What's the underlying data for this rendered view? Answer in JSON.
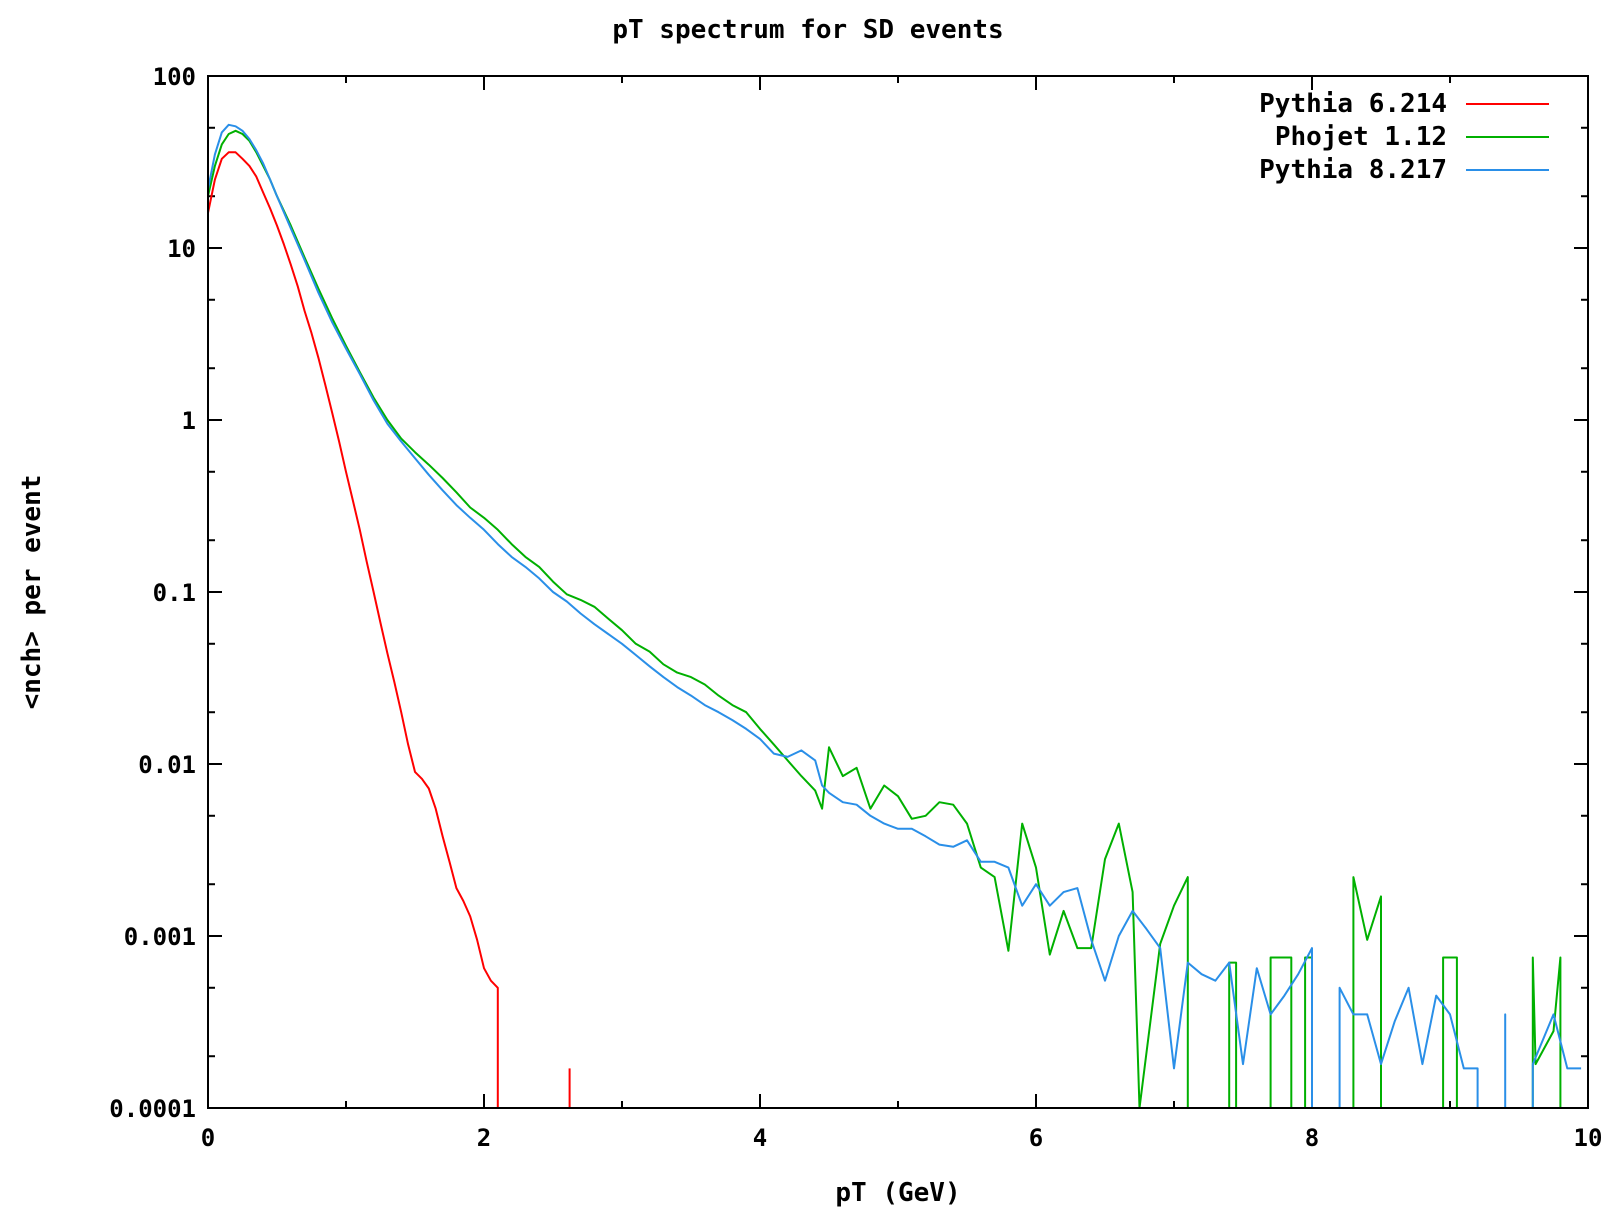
{
  "chart_data": {
    "type": "line",
    "title": "pT spectrum for SD events",
    "xlabel": "pT (GeV)",
    "ylabel": "<nch> per event",
    "xlim": [
      0,
      10
    ],
    "ylim": [
      0.0001,
      100
    ],
    "yscale": "log",
    "x_ticks": [
      "0",
      "2",
      "4",
      "6",
      "8",
      "10"
    ],
    "y_ticks": [
      "100",
      "10",
      "1",
      "0.1",
      "0.01",
      "0.001",
      "0.0001"
    ],
    "legend_position": "top-right",
    "series": [
      {
        "name": "Pythia 6.214",
        "color": "#ff0000",
        "points": [
          [
            0.0,
            16
          ],
          [
            0.05,
            25
          ],
          [
            0.1,
            33
          ],
          [
            0.15,
            36
          ],
          [
            0.2,
            36
          ],
          [
            0.25,
            33
          ],
          [
            0.3,
            30
          ],
          [
            0.35,
            26
          ],
          [
            0.4,
            21
          ],
          [
            0.45,
            17
          ],
          [
            0.5,
            13.5
          ],
          [
            0.55,
            10.5
          ],
          [
            0.6,
            8
          ],
          [
            0.65,
            6
          ],
          [
            0.7,
            4.3
          ],
          [
            0.75,
            3.2
          ],
          [
            0.8,
            2.3
          ],
          [
            0.85,
            1.6
          ],
          [
            0.9,
            1.1
          ],
          [
            0.95,
            0.75
          ],
          [
            1.0,
            0.5
          ],
          [
            1.05,
            0.34
          ],
          [
            1.1,
            0.23
          ],
          [
            1.15,
            0.15
          ],
          [
            1.2,
            0.1
          ],
          [
            1.25,
            0.066
          ],
          [
            1.3,
            0.044
          ],
          [
            1.35,
            0.03
          ],
          [
            1.4,
            0.02
          ],
          [
            1.45,
            0.013
          ],
          [
            1.5,
            0.009
          ],
          [
            1.55,
            0.0082
          ],
          [
            1.6,
            0.0072
          ],
          [
            1.65,
            0.0055
          ],
          [
            1.7,
            0.0038
          ],
          [
            1.75,
            0.0027
          ],
          [
            1.8,
            0.0019
          ],
          [
            1.85,
            0.0016
          ],
          [
            1.9,
            0.0013
          ],
          [
            1.95,
            0.00095
          ],
          [
            2.0,
            0.00065
          ],
          [
            2.05,
            0.00055
          ],
          [
            2.1,
            0.0005
          ],
          [
            2.1,
            0.0001
          ],
          [
            null,
            null
          ],
          [
            2.62,
            0.0001
          ],
          [
            2.62,
            0.00017
          ]
        ]
      },
      {
        "name": "Phojet 1.12",
        "color": "#00b000",
        "points": [
          [
            0.0,
            20
          ],
          [
            0.05,
            30
          ],
          [
            0.1,
            40
          ],
          [
            0.15,
            46
          ],
          [
            0.2,
            48
          ],
          [
            0.25,
            46
          ],
          [
            0.3,
            42
          ],
          [
            0.35,
            36
          ],
          [
            0.4,
            30
          ],
          [
            0.45,
            25
          ],
          [
            0.5,
            20
          ],
          [
            0.6,
            13.5
          ],
          [
            0.7,
            8.8
          ],
          [
            0.8,
            5.8
          ],
          [
            0.9,
            3.9
          ],
          [
            1.0,
            2.7
          ],
          [
            1.1,
            1.9
          ],
          [
            1.2,
            1.35
          ],
          [
            1.3,
            1.0
          ],
          [
            1.4,
            0.78
          ],
          [
            1.5,
            0.65
          ],
          [
            1.6,
            0.55
          ],
          [
            1.7,
            0.46
          ],
          [
            1.8,
            0.38
          ],
          [
            1.9,
            0.31
          ],
          [
            2.0,
            0.27
          ],
          [
            2.1,
            0.23
          ],
          [
            2.2,
            0.19
          ],
          [
            2.3,
            0.16
          ],
          [
            2.4,
            0.14
          ],
          [
            2.5,
            0.115
          ],
          [
            2.6,
            0.097
          ],
          [
            2.7,
            0.09
          ],
          [
            2.8,
            0.082
          ],
          [
            2.9,
            0.07
          ],
          [
            3.0,
            0.06
          ],
          [
            3.1,
            0.05
          ],
          [
            3.2,
            0.045
          ],
          [
            3.3,
            0.038
          ],
          [
            3.4,
            0.034
          ],
          [
            3.5,
            0.032
          ],
          [
            3.6,
            0.029
          ],
          [
            3.7,
            0.025
          ],
          [
            3.8,
            0.022
          ],
          [
            3.9,
            0.02
          ],
          [
            4.0,
            0.016
          ],
          [
            4.1,
            0.013
          ],
          [
            4.2,
            0.0105
          ],
          [
            4.3,
            0.0085
          ],
          [
            4.4,
            0.007
          ],
          [
            4.45,
            0.0055
          ],
          [
            4.5,
            0.0125
          ],
          [
            4.6,
            0.0085
          ],
          [
            4.7,
            0.0095
          ],
          [
            4.8,
            0.0055
          ],
          [
            4.9,
            0.0075
          ],
          [
            5.0,
            0.0065
          ],
          [
            5.1,
            0.0048
          ],
          [
            5.2,
            0.005
          ],
          [
            5.3,
            0.006
          ],
          [
            5.4,
            0.0058
          ],
          [
            5.5,
            0.0045
          ],
          [
            5.6,
            0.0025
          ],
          [
            5.7,
            0.0022
          ],
          [
            5.8,
            0.00082
          ],
          [
            5.9,
            0.0045
          ],
          [
            6.0,
            0.0025
          ],
          [
            6.1,
            0.00078
          ],
          [
            6.2,
            0.0014
          ],
          [
            6.3,
            0.00085
          ],
          [
            6.4,
            0.00085
          ],
          [
            6.5,
            0.0028
          ],
          [
            6.6,
            0.0045
          ],
          [
            6.7,
            0.0018
          ],
          [
            6.75,
            0.0001
          ],
          [
            6.9,
            0.0009
          ],
          [
            7.0,
            0.0015
          ],
          [
            7.1,
            0.0022
          ],
          [
            7.1,
            0.0001
          ],
          [
            7.4,
            0.0001
          ],
          [
            7.4,
            0.0007
          ],
          [
            7.45,
            0.0007
          ],
          [
            7.45,
            0.0001
          ],
          [
            7.7,
            0.0001
          ],
          [
            7.7,
            0.00075
          ],
          [
            7.85,
            0.00075
          ],
          [
            7.85,
            0.0001
          ],
          [
            7.95,
            0.0001
          ],
          [
            7.95,
            0.00075
          ],
          [
            8.0,
            0.00075
          ],
          [
            8.0,
            0.0001
          ],
          [
            8.3,
            0.0001
          ],
          [
            8.3,
            0.0022
          ],
          [
            8.4,
            0.00095
          ],
          [
            8.5,
            0.0017
          ],
          [
            8.5,
            0.0001
          ],
          [
            8.95,
            0.0001
          ],
          [
            8.95,
            0.00075
          ],
          [
            9.05,
            0.00075
          ],
          [
            9.05,
            0.0001
          ],
          [
            9.6,
            0.0001
          ],
          [
            9.6,
            0.00075
          ],
          [
            9.62,
            0.00018
          ],
          [
            9.75,
            0.00028
          ],
          [
            9.8,
            0.00075
          ],
          [
            9.8,
            0.0001
          ]
        ]
      },
      {
        "name": "Pythia 8.217",
        "color": "#2a8fe8",
        "points": [
          [
            0.0,
            22
          ],
          [
            0.05,
            35
          ],
          [
            0.1,
            47
          ],
          [
            0.15,
            52
          ],
          [
            0.2,
            51
          ],
          [
            0.25,
            48
          ],
          [
            0.3,
            43
          ],
          [
            0.35,
            37
          ],
          [
            0.4,
            31
          ],
          [
            0.45,
            25
          ],
          [
            0.5,
            20
          ],
          [
            0.6,
            13
          ],
          [
            0.7,
            8.5
          ],
          [
            0.8,
            5.5
          ],
          [
            0.9,
            3.7
          ],
          [
            1.0,
            2.6
          ],
          [
            1.1,
            1.85
          ],
          [
            1.2,
            1.3
          ],
          [
            1.3,
            0.95
          ],
          [
            1.4,
            0.75
          ],
          [
            1.5,
            0.6
          ],
          [
            1.6,
            0.48
          ],
          [
            1.7,
            0.39
          ],
          [
            1.8,
            0.32
          ],
          [
            1.9,
            0.27
          ],
          [
            2.0,
            0.23
          ],
          [
            2.1,
            0.19
          ],
          [
            2.2,
            0.16
          ],
          [
            2.3,
            0.14
          ],
          [
            2.4,
            0.12
          ],
          [
            2.5,
            0.1
          ],
          [
            2.6,
            0.088
          ],
          [
            2.7,
            0.075
          ],
          [
            2.8,
            0.065
          ],
          [
            2.9,
            0.057
          ],
          [
            3.0,
            0.05
          ],
          [
            3.1,
            0.043
          ],
          [
            3.2,
            0.037
          ],
          [
            3.3,
            0.032
          ],
          [
            3.4,
            0.028
          ],
          [
            3.5,
            0.025
          ],
          [
            3.6,
            0.022
          ],
          [
            3.7,
            0.02
          ],
          [
            3.8,
            0.018
          ],
          [
            3.9,
            0.016
          ],
          [
            4.0,
            0.014
          ],
          [
            4.1,
            0.0115
          ],
          [
            4.2,
            0.011
          ],
          [
            4.3,
            0.012
          ],
          [
            4.4,
            0.0105
          ],
          [
            4.45,
            0.0075
          ],
          [
            4.5,
            0.0068
          ],
          [
            4.6,
            0.006
          ],
          [
            4.7,
            0.0058
          ],
          [
            4.8,
            0.005
          ],
          [
            4.9,
            0.0045
          ],
          [
            5.0,
            0.0042
          ],
          [
            5.1,
            0.0042
          ],
          [
            5.2,
            0.0038
          ],
          [
            5.3,
            0.0034
          ],
          [
            5.4,
            0.0033
          ],
          [
            5.5,
            0.0036
          ],
          [
            5.6,
            0.0027
          ],
          [
            5.7,
            0.0027
          ],
          [
            5.8,
            0.0025
          ],
          [
            5.9,
            0.0015
          ],
          [
            6.0,
            0.002
          ],
          [
            6.1,
            0.0015
          ],
          [
            6.2,
            0.0018
          ],
          [
            6.3,
            0.0019
          ],
          [
            6.4,
            0.00095
          ],
          [
            6.5,
            0.00055
          ],
          [
            6.6,
            0.001
          ],
          [
            6.7,
            0.0014
          ],
          [
            6.8,
            0.0011
          ],
          [
            6.9,
            0.00085
          ],
          [
            7.0,
            0.00017
          ],
          [
            7.1,
            0.0007
          ],
          [
            7.2,
            0.0006
          ],
          [
            7.3,
            0.00055
          ],
          [
            7.4,
            0.0007
          ],
          [
            7.5,
            0.00018
          ],
          [
            7.6,
            0.00065
          ],
          [
            7.7,
            0.00035
          ],
          [
            7.8,
            0.00045
          ],
          [
            7.9,
            0.0006
          ],
          [
            8.0,
            0.00085
          ],
          [
            8.0,
            0.0001
          ],
          [
            8.2,
            0.0001
          ],
          [
            8.2,
            0.0005
          ],
          [
            8.3,
            0.00035
          ],
          [
            8.4,
            0.00035
          ],
          [
            8.5,
            0.00018
          ],
          [
            8.6,
            0.00032
          ],
          [
            8.7,
            0.0005
          ],
          [
            8.8,
            0.00018
          ],
          [
            8.9,
            0.00045
          ],
          [
            9.0,
            0.00035
          ],
          [
            9.1,
            0.00017
          ],
          [
            9.2,
            0.00017
          ],
          [
            9.2,
            0.0001
          ],
          [
            9.4,
            0.0001
          ],
          [
            9.4,
            0.00035
          ],
          [
            9.4,
            0.0001
          ],
          [
            9.6,
            0.0001
          ],
          [
            9.6,
            0.00018
          ],
          [
            9.75,
            0.00035
          ],
          [
            9.85,
            0.00017
          ],
          [
            9.95,
            0.00017
          ]
        ]
      }
    ]
  }
}
